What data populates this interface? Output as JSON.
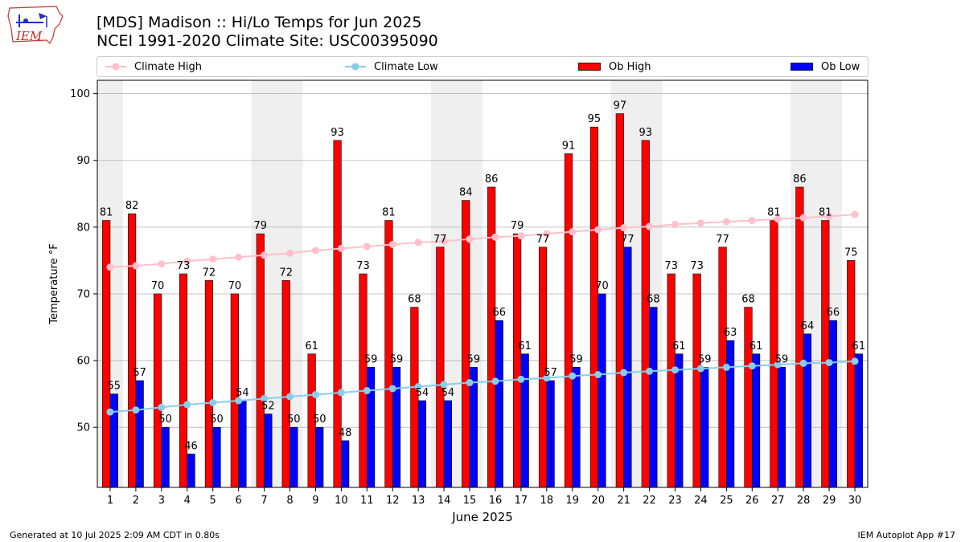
{
  "header": {
    "logo_text": "IEM",
    "title_line1": "[MDS] Madison :: Hi/Lo Temps for Jun 2025",
    "title_line2": "NCEI 1991-2020 Climate Site: USC00395090"
  },
  "footer": {
    "left": "Generated at 10 Jul 2025 2:09 AM CDT in 0.80s",
    "right": "IEM Autoplot App #17"
  },
  "colors": {
    "climate_high": "#ffc0cb",
    "climate_low": "#87ceeb",
    "ob_high": "#ff0000",
    "ob_low": "#0000ff",
    "weekend_band": "#efefef",
    "grid": "#b0b0b0"
  },
  "chart_data": {
    "type": "bar",
    "xlabel": "June 2025",
    "ylabel": "Temperature °F",
    "ylim": [
      41,
      102
    ],
    "yticks": [
      50,
      60,
      70,
      80,
      90,
      100
    ],
    "grid": "horizontal",
    "legend_placement": "top",
    "categories": [
      "1",
      "2",
      "3",
      "4",
      "5",
      "6",
      "7",
      "8",
      "9",
      "10",
      "11",
      "12",
      "13",
      "14",
      "15",
      "16",
      "17",
      "18",
      "19",
      "20",
      "21",
      "22",
      "23",
      "24",
      "25",
      "26",
      "27",
      "28",
      "29",
      "30"
    ],
    "weekend_days": [
      1,
      7,
      8,
      14,
      15,
      21,
      22,
      28,
      29
    ],
    "series": [
      {
        "name": "Climate High",
        "kind": "line",
        "values": [
          74.0,
          74.2,
          74.5,
          74.9,
          75.2,
          75.5,
          75.8,
          76.1,
          76.5,
          76.8,
          77.1,
          77.4,
          77.7,
          77.9,
          78.2,
          78.5,
          78.7,
          79.0,
          79.3,
          79.6,
          79.9,
          80.1,
          80.4,
          80.6,
          80.8,
          81.0,
          81.2,
          81.4,
          81.6,
          81.9
        ]
      },
      {
        "name": "Climate Low",
        "kind": "line",
        "values": [
          52.3,
          52.6,
          53.0,
          53.4,
          53.7,
          54.0,
          54.3,
          54.6,
          54.9,
          55.2,
          55.5,
          55.8,
          56.1,
          56.4,
          56.7,
          56.9,
          57.2,
          57.4,
          57.7,
          57.9,
          58.2,
          58.4,
          58.6,
          58.8,
          59.0,
          59.2,
          59.4,
          59.6,
          59.7,
          59.9
        ]
      },
      {
        "name": "Ob High",
        "kind": "bar",
        "values": [
          81,
          82,
          70,
          73,
          72,
          70,
          79,
          72,
          61,
          93,
          73,
          81,
          68,
          77,
          84,
          86,
          79,
          77,
          91,
          95,
          97,
          93,
          73,
          73,
          77,
          68,
          81,
          86,
          81,
          75
        ]
      },
      {
        "name": "Ob Low",
        "kind": "bar",
        "values": [
          55,
          57,
          50,
          46,
          50,
          54,
          52,
          50,
          50,
          48,
          59,
          59,
          54,
          54,
          59,
          66,
          61,
          57,
          59,
          70,
          77,
          68,
          61,
          59,
          63,
          61,
          59,
          64,
          66,
          61
        ]
      }
    ]
  }
}
